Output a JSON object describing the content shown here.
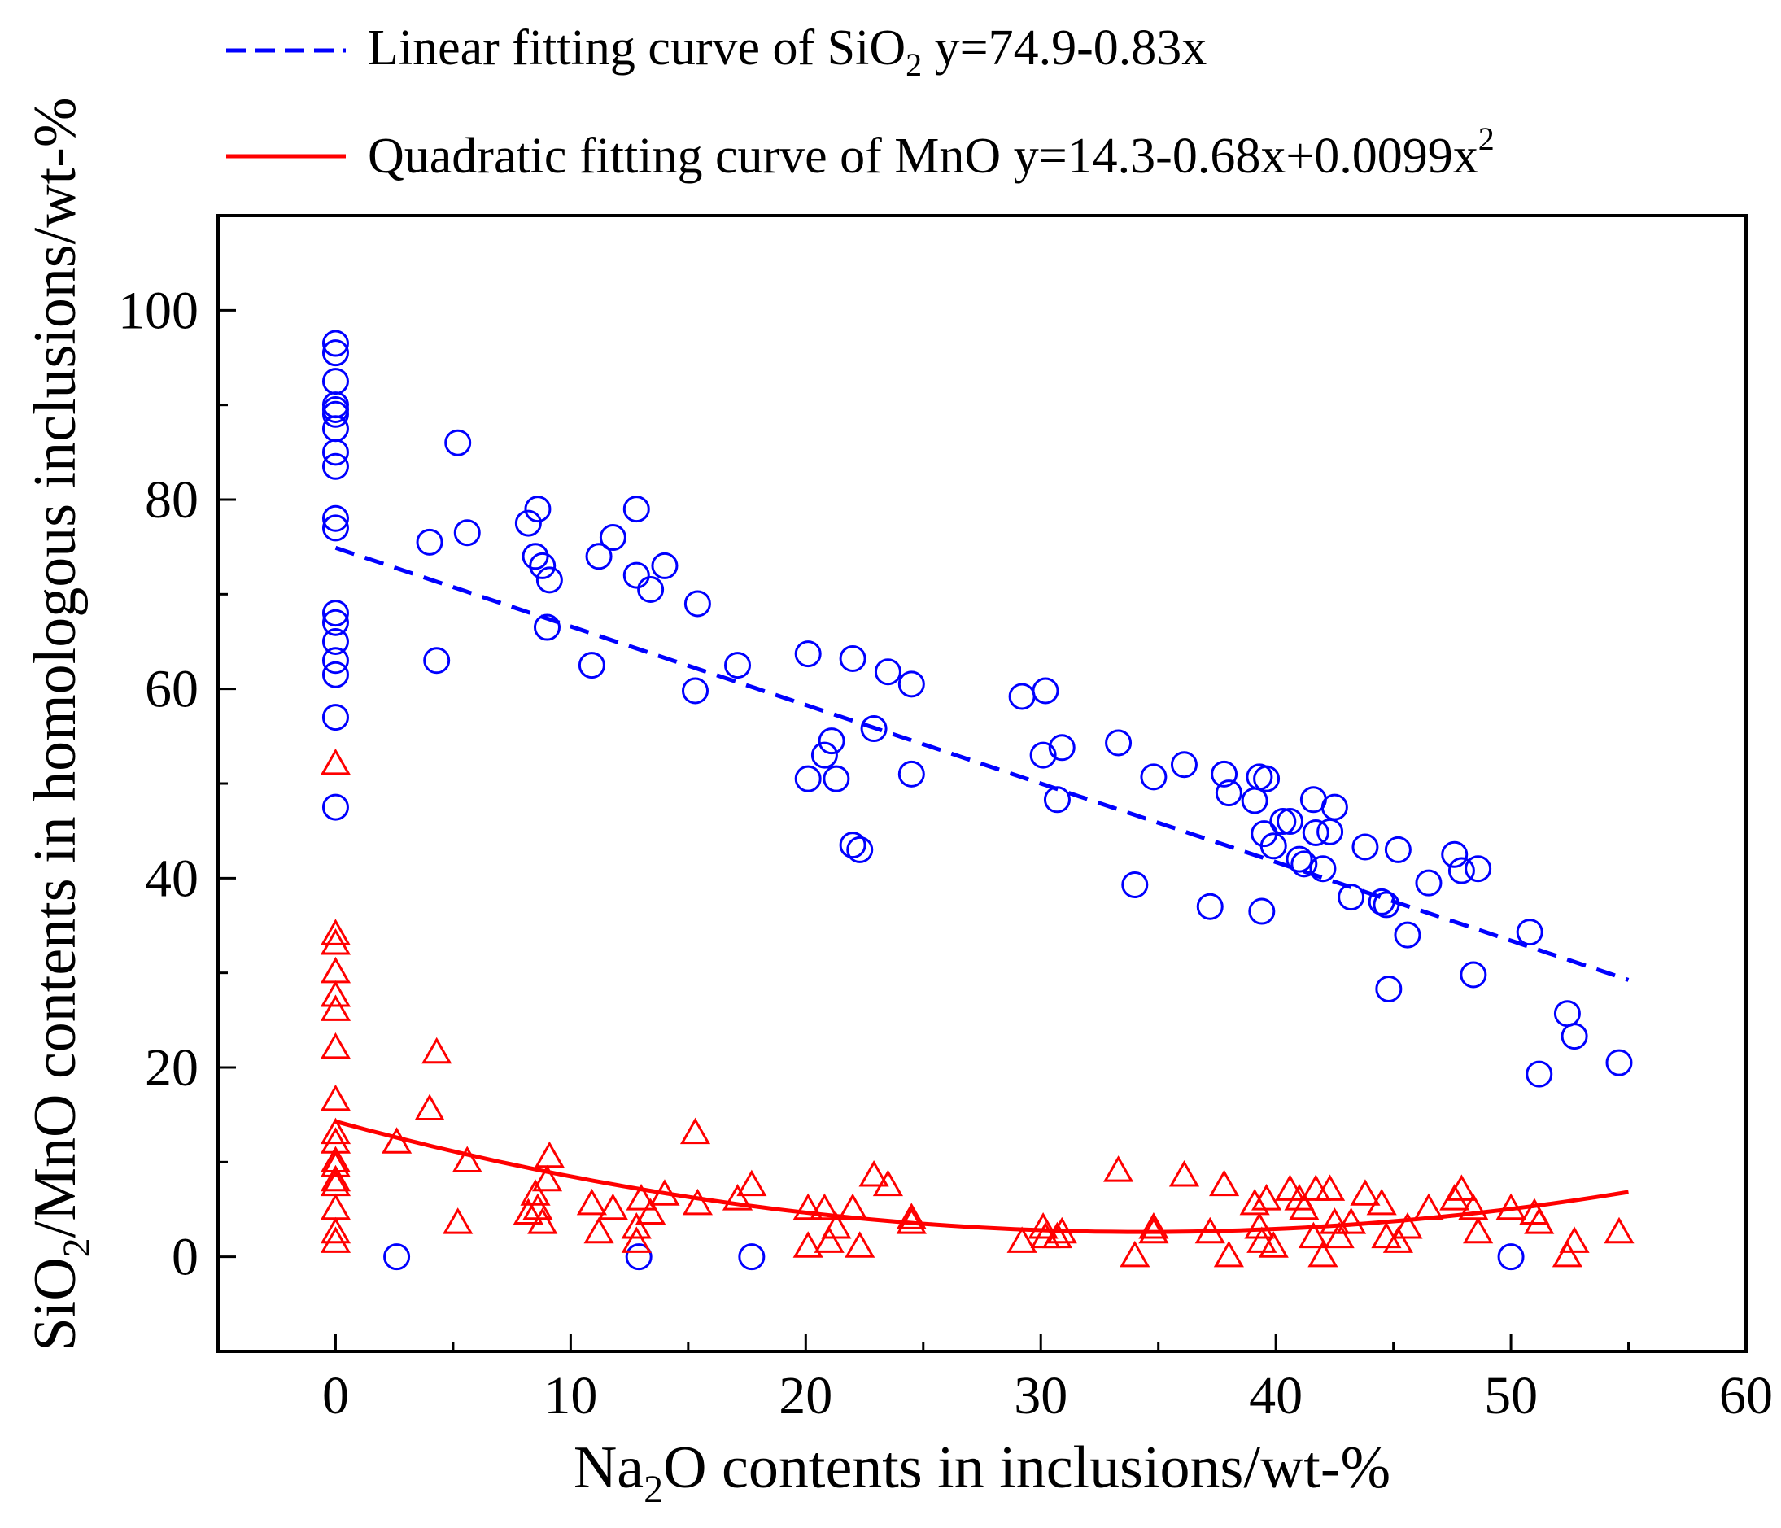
{
  "chart_data": {
    "type": "scatter",
    "xlabel": {
      "pre": "Na",
      "sub": "2",
      "post": "O contents in inclusions/wt-%"
    },
    "ylabel": {
      "pre": "SiO",
      "sub": "2",
      "post": "/MnO contents in homologous inclusions/wt-%"
    },
    "xlim": [
      -5,
      60
    ],
    "ylim": [
      -10,
      110
    ],
    "xticks": [
      0,
      10,
      20,
      30,
      40,
      50,
      60
    ],
    "yticks": [
      0,
      20,
      40,
      60,
      80,
      100
    ],
    "grid": false,
    "legend_position": "top",
    "legend": [
      {
        "pre": "Linear fitting curve of SiO",
        "sub": "2",
        "post": "  y=74.9-0.83x",
        "style": "dashed",
        "color": "#0000ff"
      },
      {
        "pre": "Quadratic fitting curve of MnO  y=14.3-0.68x+0.0099x",
        "sup": "2",
        "style": "solid",
        "color": "#ff0000"
      }
    ],
    "series": [
      {
        "marker": "circle",
        "color": "#0000ff",
        "points": [
          [
            0,
            96.5
          ],
          [
            0,
            95.5
          ],
          [
            0,
            92.5
          ],
          [
            0,
            90
          ],
          [
            0,
            89.5
          ],
          [
            0,
            89
          ],
          [
            0,
            87.5
          ],
          [
            0,
            85
          ],
          [
            0,
            83.5
          ],
          [
            0,
            78
          ],
          [
            0,
            77
          ],
          [
            0,
            68
          ],
          [
            0,
            67
          ],
          [
            0,
            65
          ],
          [
            0,
            63
          ],
          [
            0,
            61.5
          ],
          [
            0,
            57
          ],
          [
            0,
            47.5
          ],
          [
            5.2,
            86
          ],
          [
            4,
            75.5
          ],
          [
            5.6,
            76.5
          ],
          [
            4.3,
            63
          ],
          [
            8.2,
            77.5
          ],
          [
            8.6,
            79
          ],
          [
            8.5,
            74
          ],
          [
            8.8,
            73
          ],
          [
            9.1,
            71.5
          ],
          [
            9,
            66.5
          ],
          [
            11.2,
            74
          ],
          [
            11.8,
            76
          ],
          [
            12.8,
            79
          ],
          [
            12.8,
            72
          ],
          [
            13.4,
            70.5
          ],
          [
            14,
            73
          ],
          [
            10.9,
            62.5
          ],
          [
            15.4,
            69
          ],
          [
            15.3,
            59.8
          ],
          [
            17.1,
            62.5
          ],
          [
            20.1,
            63.7
          ],
          [
            22,
            63.2
          ],
          [
            23.5,
            61.8
          ],
          [
            24.5,
            60.5
          ],
          [
            20.1,
            50.5
          ],
          [
            20.8,
            53
          ],
          [
            21.1,
            54.5
          ],
          [
            21.3,
            50.5
          ],
          [
            22.9,
            55.8
          ],
          [
            24.5,
            51
          ],
          [
            22,
            43.5
          ],
          [
            22.3,
            43
          ],
          [
            29.2,
            59.2
          ],
          [
            30.2,
            59.8
          ],
          [
            30.1,
            53
          ],
          [
            30.9,
            53.8
          ],
          [
            30.7,
            48.3
          ],
          [
            33.3,
            54.3
          ],
          [
            34,
            39.3
          ],
          [
            34.8,
            50.7
          ],
          [
            36.1,
            52
          ],
          [
            37.2,
            37
          ],
          [
            37.8,
            51
          ],
          [
            38,
            49
          ],
          [
            39.1,
            48.2
          ],
          [
            39.3,
            50.7
          ],
          [
            39.6,
            50.5
          ],
          [
            39.4,
            36.5
          ],
          [
            39.5,
            44.7
          ],
          [
            39.9,
            43.4
          ],
          [
            40.3,
            46
          ],
          [
            40.6,
            46
          ],
          [
            41,
            42
          ],
          [
            41.2,
            41.5
          ],
          [
            41.6,
            48.3
          ],
          [
            41.7,
            44.8
          ],
          [
            42,
            41
          ],
          [
            42.3,
            44.9
          ],
          [
            42.5,
            47.5
          ],
          [
            43.2,
            38
          ],
          [
            43.8,
            43.3
          ],
          [
            44.5,
            37.5
          ],
          [
            44.7,
            37.2
          ],
          [
            44.8,
            28.3
          ],
          [
            45.2,
            43
          ],
          [
            45.6,
            34
          ],
          [
            46.5,
            39.5
          ],
          [
            47.6,
            42.5
          ],
          [
            47.9,
            40.8
          ],
          [
            48.6,
            41
          ],
          [
            48.4,
            29.8
          ],
          [
            50.8,
            34.3
          ],
          [
            52.4,
            25.7
          ],
          [
            52.7,
            23.3
          ],
          [
            51.2,
            19.3
          ],
          [
            54.6,
            20.5
          ],
          [
            2.6,
            0
          ],
          [
            12.9,
            0
          ],
          [
            17.7,
            0
          ],
          [
            50,
            0
          ]
        ]
      },
      {
        "marker": "triangle",
        "color": "#ff0000",
        "points": [
          [
            0,
            52
          ],
          [
            0,
            34
          ],
          [
            0,
            33
          ],
          [
            0,
            30
          ],
          [
            0,
            27.5
          ],
          [
            0,
            26
          ],
          [
            0,
            22
          ],
          [
            0,
            16.5
          ],
          [
            0,
            13
          ],
          [
            0,
            12
          ],
          [
            0,
            10
          ],
          [
            0,
            9.5
          ],
          [
            0,
            8
          ],
          [
            0,
            7.5
          ],
          [
            0,
            5
          ],
          [
            0,
            2.5
          ],
          [
            0,
            1.5
          ],
          [
            2.6,
            12
          ],
          [
            4,
            15.5
          ],
          [
            4.3,
            21.5
          ],
          [
            5.2,
            3.5
          ],
          [
            5.6,
            10
          ],
          [
            8.2,
            4.5
          ],
          [
            8.6,
            5
          ],
          [
            8.5,
            6.5
          ],
          [
            8.8,
            3.5
          ],
          [
            9.1,
            10.5
          ],
          [
            9,
            8
          ],
          [
            11.2,
            2.5
          ],
          [
            10.9,
            5.5
          ],
          [
            11.8,
            5
          ],
          [
            12.8,
            1.5
          ],
          [
            12.8,
            3
          ],
          [
            13,
            6
          ],
          [
            13.4,
            4.5
          ],
          [
            14,
            6.5
          ],
          [
            15.4,
            5.5
          ],
          [
            15.3,
            13
          ],
          [
            17.1,
            6
          ],
          [
            17.7,
            7.5
          ],
          [
            20.1,
            1
          ],
          [
            20.1,
            5
          ],
          [
            20.8,
            5
          ],
          [
            21,
            1.5
          ],
          [
            21.3,
            3
          ],
          [
            22,
            5
          ],
          [
            22.3,
            1
          ],
          [
            22.9,
            8.5
          ],
          [
            23.5,
            7.5
          ],
          [
            24.5,
            3.5
          ],
          [
            24.5,
            4
          ],
          [
            29.2,
            1.5
          ],
          [
            30.1,
            3
          ],
          [
            30.2,
            2
          ],
          [
            30.7,
            2
          ],
          [
            30.9,
            2.5
          ],
          [
            33.3,
            9
          ],
          [
            34,
            0
          ],
          [
            34.8,
            3
          ],
          [
            34.8,
            2.5
          ],
          [
            36.1,
            8.5
          ],
          [
            37.2,
            2.5
          ],
          [
            37.8,
            7.5
          ],
          [
            38,
            0
          ],
          [
            39.1,
            5.5
          ],
          [
            39.3,
            3
          ],
          [
            39.4,
            1.5
          ],
          [
            39.6,
            6
          ],
          [
            39.9,
            1
          ],
          [
            40.6,
            7
          ],
          [
            41,
            6
          ],
          [
            41.2,
            5
          ],
          [
            41.6,
            2
          ],
          [
            41.7,
            7
          ],
          [
            42,
            0
          ],
          [
            42.3,
            7
          ],
          [
            42.5,
            3.5
          ],
          [
            42.7,
            2
          ],
          [
            43.2,
            3.5
          ],
          [
            43.8,
            6.5
          ],
          [
            44.5,
            5.5
          ],
          [
            44.7,
            2
          ],
          [
            45.2,
            1.5
          ],
          [
            45.6,
            3
          ],
          [
            46.5,
            5
          ],
          [
            47.6,
            6
          ],
          [
            47.9,
            7
          ],
          [
            48.4,
            5
          ],
          [
            48.6,
            2.5
          ],
          [
            50,
            5
          ],
          [
            51,
            4.5
          ],
          [
            51.2,
            3.5
          ],
          [
            52.4,
            0
          ],
          [
            52.7,
            1.5
          ],
          [
            54.6,
            2.5
          ]
        ]
      }
    ],
    "fits": [
      {
        "type": "linear",
        "color": "#0000ff",
        "style": "dashed",
        "x_range": [
          0,
          55
        ],
        "coef": [
          74.9,
          -0.83
        ]
      },
      {
        "type": "quadratic",
        "color": "#ff0000",
        "style": "solid",
        "x_range": [
          0,
          55
        ],
        "coef": [
          14.3,
          -0.68,
          0.0099
        ]
      }
    ]
  }
}
